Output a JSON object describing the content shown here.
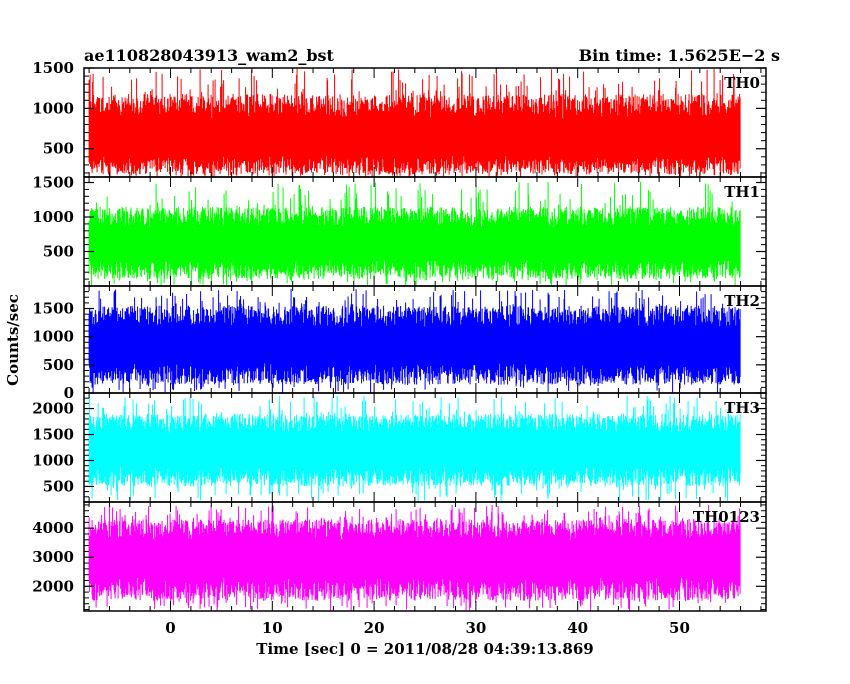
{
  "header": {
    "title": "ae110828043913_wam2_bst",
    "bin_time": "Bin time: 1.5625E−2 s"
  },
  "chart_data": {
    "type": "line",
    "title": "ae110828043913_wam2_bst",
    "subtitle": "Bin time: 1.5625E−2 s",
    "xlabel": "Time [sec] 0 = 2011/08/28 04:39:13.869",
    "ylabel": "Counts/sec",
    "xlim": [
      -8.5,
      58.5
    ],
    "x_range": [
      -8,
      56
    ],
    "x_ticks": [
      0,
      10,
      20,
      30,
      40,
      50
    ],
    "grid": false,
    "panels": [
      {
        "name": "TH0",
        "color": "#ff0000",
        "ylim": [
          150,
          1500
        ],
        "y_ticks": [
          500,
          1000,
          1500
        ],
        "baseline": 180,
        "mean": 620,
        "upper_typical": 1180,
        "upper_max": 1500
      },
      {
        "name": "TH1",
        "color": "#00ff00",
        "ylim": [
          0,
          1580
        ],
        "y_ticks": [
          500,
          1000,
          1500
        ],
        "baseline": 100,
        "mean": 600,
        "upper_typical": 1150,
        "upper_max": 1520
      },
      {
        "name": "TH2",
        "color": "#0000ff",
        "ylim": [
          0,
          1900
        ],
        "y_ticks": [
          0,
          500,
          1000,
          1500
        ],
        "baseline": 150,
        "mean": 850,
        "upper_typical": 1550,
        "upper_max": 1850
      },
      {
        "name": "TH3",
        "color": "#00ffff",
        "ylim": [
          200,
          2300
        ],
        "y_ticks": [
          500,
          1000,
          1500,
          2000
        ],
        "baseline": 500,
        "mean": 1200,
        "upper_typical": 1900,
        "upper_max": 2250
      },
      {
        "name": "TH0123",
        "color": "#ff00ff",
        "ylim": [
          1150,
          4900
        ],
        "y_ticks": [
          2000,
          3000,
          4000
        ],
        "baseline": 1500,
        "mean": 3000,
        "upper_typical": 4300,
        "upper_max": 4800
      }
    ]
  }
}
